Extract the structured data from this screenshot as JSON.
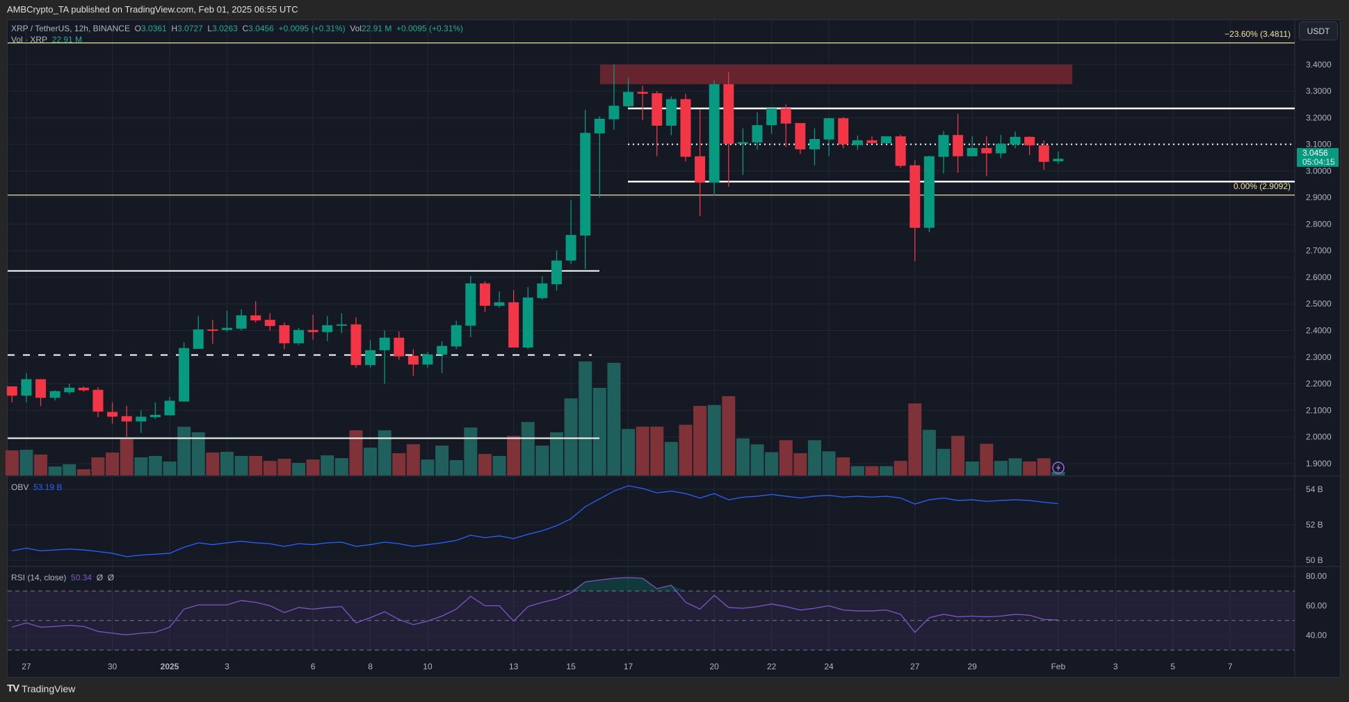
{
  "header": {
    "published": "AMBCrypto_TA published on TradingView.com, Feb 01, 2025 06:55 UTC"
  },
  "legend": {
    "symbol": "XRP / TetherUS, 12h, BINANCE",
    "o_label": "O",
    "o": "3.0361",
    "h_label": "H",
    "h": "3.0727",
    "l_label": "L",
    "l": "3.0263",
    "c_label": "C",
    "c": "3.0456",
    "change": "+0.0095 (+0.31%)",
    "vol_label": "Vol",
    "vol": "22.91 M",
    "vol_change": "+0.0095 (+0.31%)",
    "vol_series_label": "Vol · XRP",
    "vol_series_value": "22.91 M"
  },
  "currency_button": "USDT",
  "price_tag": {
    "price": "3.0456",
    "countdown": "05:04:15"
  },
  "fib_levels": [
    {
      "label": "−23.60% (3.4811)",
      "price": 3.4811
    },
    {
      "label": "0.00% (2.9092)",
      "price": 2.9092
    }
  ],
  "indicators": {
    "obv": {
      "label": "OBV",
      "value": "53.19 B"
    },
    "rsi": {
      "label": "RSI (14, close)",
      "value": "50.34",
      "extra1": "Ø",
      "extra2": "Ø"
    }
  },
  "footer": {
    "brand": "TradingView"
  },
  "colors": {
    "up": "#089981",
    "down": "#f23645",
    "vol_up": "#1f5f5c",
    "vol_down": "#7f3338",
    "obv": "#2962ff",
    "rsi": "#7e57c2",
    "fib": "#f0e3a0",
    "zone": "#6e2630"
  },
  "chart_data": {
    "type": "candlestick",
    "interval": "12h",
    "price_axis_ticks": [
      "3.4000",
      "3.3000",
      "3.2000",
      "3.1000",
      "3.0000",
      "2.9000",
      "2.8000",
      "2.7000",
      "2.6000",
      "2.5000",
      "2.4000",
      "2.3000",
      "2.2000",
      "2.1000",
      "2.0000",
      "1.9000"
    ],
    "obv_axis_ticks": [
      "54 B",
      "52 B",
      "50 B"
    ],
    "rsi_axis_ticks": [
      "80.00",
      "60.00",
      "40.00"
    ],
    "time_labels": [
      {
        "text": "27",
        "day": 0
      },
      {
        "text": "30",
        "day": 3
      },
      {
        "text": "2025",
        "day": 5
      },
      {
        "text": "3",
        "day": 7
      },
      {
        "text": "6",
        "day": 10
      },
      {
        "text": "8",
        "day": 12
      },
      {
        "text": "10",
        "day": 14
      },
      {
        "text": "13",
        "day": 17
      },
      {
        "text": "15",
        "day": 19
      },
      {
        "text": "17",
        "day": 21
      },
      {
        "text": "20",
        "day": 24
      },
      {
        "text": "22",
        "day": 26
      },
      {
        "text": "24",
        "day": 28
      },
      {
        "text": "27",
        "day": 31
      },
      {
        "text": "29",
        "day": 33
      },
      {
        "text": "Feb",
        "day": 36
      },
      {
        "text": "3",
        "day": 38
      },
      {
        "text": "5",
        "day": 40
      },
      {
        "text": "7",
        "day": 42
      }
    ],
    "ohlc": [
      [
        2.19,
        2.19,
        2.13,
        2.155
      ],
      [
        2.155,
        2.24,
        2.13,
        2.217
      ],
      [
        2.217,
        2.217,
        2.116,
        2.147
      ],
      [
        2.147,
        2.175,
        2.137,
        2.172
      ],
      [
        2.168,
        2.2,
        2.16,
        2.185
      ],
      [
        2.185,
        2.19,
        2.17,
        2.175
      ],
      [
        2.177,
        2.187,
        2.074,
        2.095
      ],
      [
        2.094,
        2.13,
        2.05,
        2.076
      ],
      [
        2.078,
        2.117,
        2.0,
        2.058
      ],
      [
        2.058,
        2.1,
        2.015,
        2.076
      ],
      [
        2.074,
        2.13,
        2.067,
        2.083
      ],
      [
        2.081,
        2.15,
        2.081,
        2.136
      ],
      [
        2.133,
        2.355,
        2.133,
        2.334
      ],
      [
        2.331,
        2.455,
        2.331,
        2.404
      ],
      [
        2.404,
        2.44,
        2.35,
        2.402
      ],
      [
        2.402,
        2.475,
        2.395,
        2.41
      ],
      [
        2.407,
        2.48,
        2.4,
        2.457
      ],
      [
        2.457,
        2.51,
        2.43,
        2.438
      ],
      [
        2.44,
        2.465,
        2.4,
        2.417
      ],
      [
        2.42,
        2.43,
        2.33,
        2.352
      ],
      [
        2.352,
        2.41,
        2.345,
        2.402
      ],
      [
        2.402,
        2.46,
        2.365,
        2.394
      ],
      [
        2.394,
        2.455,
        2.36,
        2.42
      ],
      [
        2.42,
        2.465,
        2.39,
        2.423
      ],
      [
        2.423,
        2.45,
        2.26,
        2.27
      ],
      [
        2.27,
        2.363,
        2.26,
        2.326
      ],
      [
        2.326,
        2.4,
        2.2,
        2.373
      ],
      [
        2.373,
        2.396,
        2.29,
        2.303
      ],
      [
        2.305,
        2.33,
        2.23,
        2.272
      ],
      [
        2.272,
        2.32,
        2.26,
        2.31
      ],
      [
        2.309,
        2.36,
        2.24,
        2.342
      ],
      [
        2.34,
        2.437,
        2.33,
        2.42
      ],
      [
        2.418,
        2.604,
        2.375,
        2.577
      ],
      [
        2.577,
        2.585,
        2.47,
        2.493
      ],
      [
        2.493,
        2.547,
        2.486,
        2.506
      ],
      [
        2.506,
        2.552,
        2.336,
        2.336
      ],
      [
        2.336,
        2.563,
        2.33,
        2.524
      ],
      [
        2.522,
        2.604,
        2.516,
        2.577
      ],
      [
        2.574,
        2.7,
        2.55,
        2.663
      ],
      [
        2.663,
        2.89,
        2.65,
        2.759
      ],
      [
        2.757,
        3.23,
        2.63,
        3.143
      ],
      [
        3.141,
        3.205,
        2.9,
        3.196
      ],
      [
        3.194,
        3.4,
        3.155,
        3.245
      ],
      [
        3.243,
        3.35,
        3.24,
        3.297
      ],
      [
        3.297,
        3.32,
        3.19,
        3.29
      ],
      [
        3.292,
        3.3,
        3.055,
        3.17
      ],
      [
        3.17,
        3.28,
        3.134,
        3.27
      ],
      [
        3.27,
        3.29,
        3.035,
        3.053
      ],
      [
        3.055,
        3.23,
        2.83,
        2.956
      ],
      [
        2.956,
        3.34,
        2.907,
        3.326
      ],
      [
        3.326,
        3.37,
        2.94,
        3.102
      ],
      [
        3.102,
        3.16,
        2.985,
        3.108
      ],
      [
        3.107,
        3.22,
        3.08,
        3.172
      ],
      [
        3.172,
        3.235,
        3.14,
        3.235
      ],
      [
        3.235,
        3.25,
        3.09,
        3.178
      ],
      [
        3.18,
        3.18,
        3.063,
        3.081
      ],
      [
        3.081,
        3.16,
        3.02,
        3.12
      ],
      [
        3.118,
        3.2,
        3.055,
        3.198
      ],
      [
        3.198,
        3.203,
        3.085,
        3.1
      ],
      [
        3.097,
        3.133,
        3.079,
        3.115
      ],
      [
        3.115,
        3.13,
        3.103,
        3.105
      ],
      [
        3.104,
        3.13,
        3.104,
        3.13
      ],
      [
        3.13,
        3.136,
        3.012,
        3.019
      ],
      [
        3.021,
        3.04,
        2.66,
        2.786
      ],
      [
        2.786,
        3.057,
        2.77,
        3.055
      ],
      [
        3.053,
        3.15,
        2.99,
        3.135
      ],
      [
        3.135,
        3.215,
        2.993,
        3.055
      ],
      [
        3.055,
        3.13,
        3.055,
        3.086
      ],
      [
        3.086,
        3.13,
        2.98,
        3.066
      ],
      [
        3.066,
        3.135,
        3.048,
        3.102
      ],
      [
        3.099,
        3.148,
        3.085,
        3.128
      ],
      [
        3.128,
        3.13,
        3.06,
        3.096
      ],
      [
        3.096,
        3.115,
        3.004,
        3.034
      ],
      [
        3.0361,
        3.0727,
        3.0263,
        3.0456
      ]
    ],
    "volume_m": [
      162,
      166,
      135,
      58,
      72,
      40,
      117,
      148,
      234,
      117,
      126,
      90,
      315,
      279,
      148,
      153,
      126,
      126,
      94,
      108,
      81,
      103,
      130,
      112,
      292,
      180,
      292,
      144,
      202,
      103,
      193,
      99,
      310,
      139,
      126,
      256,
      346,
      193,
      279,
      499,
      738,
      567,
      729,
      301,
      316,
      316,
      217,
      328,
      450,
      456,
      513,
      240,
      201,
      150,
      228,
      144,
      228,
      156,
      117,
      60,
      60,
      60,
      94,
      466,
      295,
      172,
      256,
      90,
      205,
      94,
      111,
      90,
      111,
      23
    ],
    "obv_b": [
      50.53,
      50.68,
      50.53,
      50.58,
      50.63,
      50.58,
      50.49,
      50.39,
      50.2,
      50.29,
      50.34,
      50.39,
      50.73,
      50.98,
      50.88,
      50.98,
      51.07,
      50.98,
      50.93,
      50.78,
      50.93,
      50.88,
      50.98,
      51.02,
      50.78,
      50.88,
      51.02,
      50.93,
      50.78,
      50.88,
      50.98,
      51.12,
      51.41,
      51.27,
      51.37,
      51.22,
      51.46,
      51.66,
      51.95,
      52.34,
      53.02,
      53.46,
      53.9,
      54.2,
      54.05,
      53.8,
      53.9,
      53.76,
      53.51,
      53.76,
      53.41,
      53.56,
      53.61,
      53.71,
      53.61,
      53.51,
      53.61,
      53.66,
      53.56,
      53.61,
      53.56,
      53.61,
      53.51,
      53.17,
      53.41,
      53.51,
      53.37,
      53.41,
      53.32,
      53.37,
      53.41,
      53.37,
      53.27,
      53.19
    ],
    "rsi": [
      45.5,
      48.4,
      45.5,
      46,
      46.7,
      46,
      42.6,
      41.4,
      40.3,
      41.4,
      42,
      45.5,
      57.7,
      60.6,
      60.6,
      60.6,
      63.5,
      62.3,
      60,
      55.4,
      58.8,
      57.7,
      58.8,
      59.4,
      48.4,
      51.9,
      55.9,
      50.7,
      47.2,
      49.6,
      53,
      57.7,
      66.4,
      60,
      60,
      49.6,
      59.4,
      62.3,
      64.6,
      68.7,
      76.2,
      77.4,
      78.6,
      79.1,
      78.6,
      71.6,
      73.9,
      62.3,
      57.7,
      67,
      58.8,
      58.3,
      59.4,
      61.2,
      59.4,
      57.1,
      58.3,
      60,
      57.1,
      56.5,
      56.5,
      57.1,
      54.2,
      42,
      51.9,
      54.2,
      52.5,
      53,
      52.5,
      53,
      54.2,
      53.6,
      50.7,
      50.34
    ],
    "rsi_bands": {
      "upper": 70,
      "middle": 50,
      "lower": 30
    },
    "drawings": {
      "resistance_zone": {
        "from": 3.326,
        "to": 3.4
      },
      "range_lines": [
        {
          "price": 3.235,
          "style": "solid"
        },
        {
          "price": 3.1,
          "style": "dotted"
        },
        {
          "price": 2.96,
          "style": "solid"
        }
      ],
      "support_lines": [
        {
          "price": 2.624,
          "style": "solid"
        },
        {
          "price": 2.308,
          "style": "dashed"
        },
        {
          "price": 1.995,
          "style": "solid"
        }
      ]
    }
  }
}
